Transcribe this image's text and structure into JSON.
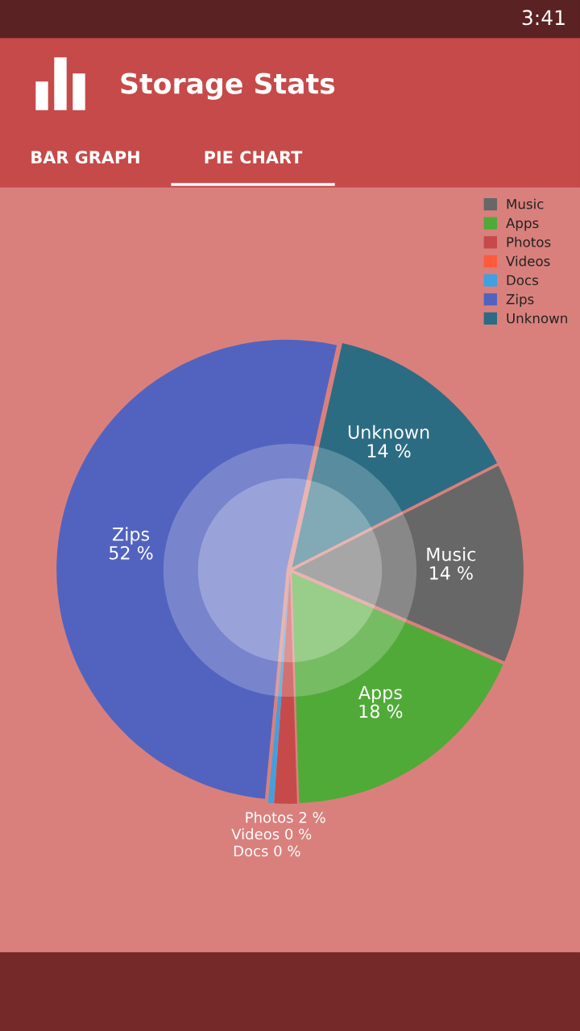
{
  "chart_data": {
    "type": "pie",
    "title": "Storage Stats",
    "categories": [
      "Music",
      "Apps",
      "Photos",
      "Videos",
      "Docs",
      "Zips",
      "Unknown"
    ],
    "values": [
      14,
      18,
      1.6,
      0,
      0.4,
      52,
      14
    ],
    "value_labels": [
      "14 %",
      "18 %",
      "2 %",
      "0 %",
      "0 %",
      "52 %",
      "14 %"
    ],
    "colors": [
      "#676767",
      "#50aa38",
      "#c64a49",
      "#fe5b3d",
      "#40a0e0",
      "#5263bf",
      "#2b6c83"
    ],
    "legend": "top right",
    "annotations": [
      "3:41",
      "BAR GRAPH",
      "PIE CHART"
    ]
  }
}
